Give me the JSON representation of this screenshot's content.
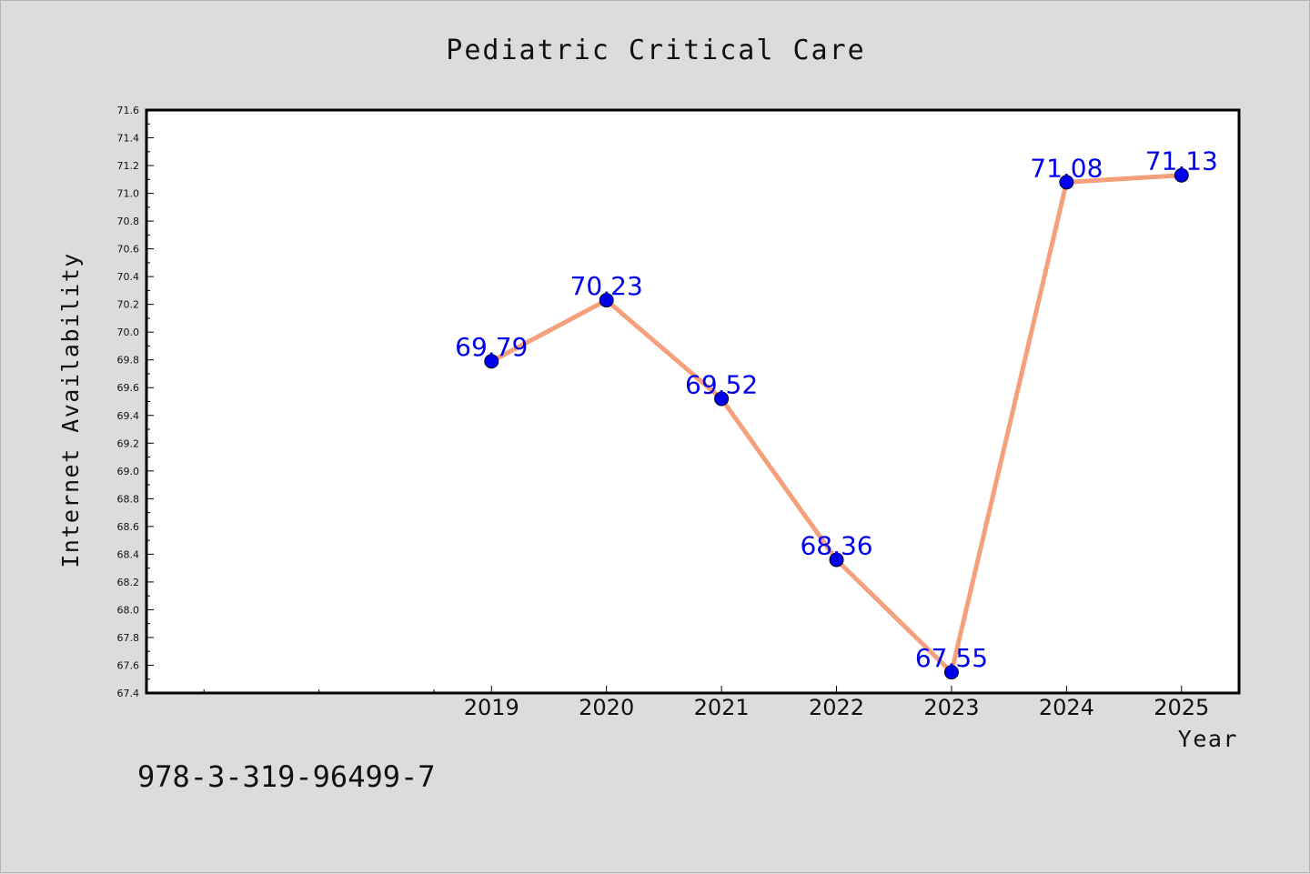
{
  "title": "Pediatric Critical Care",
  "footnote": "978-3-319-96499-7",
  "colors": {
    "line": "#f4a07c",
    "marker": "#0000ee",
    "label": "#0000ee",
    "background": "#dcdcdc",
    "plot": "#ffffff"
  },
  "chart_data": {
    "type": "line",
    "title": "Pediatric Critical Care",
    "xlabel": "Year",
    "ylabel": "Internet Availability",
    "x": [
      2019,
      2020,
      2021,
      2022,
      2023,
      2024,
      2025
    ],
    "series": [
      {
        "values": [
          69.79,
          70.23,
          69.52,
          68.36,
          67.55,
          71.08,
          71.13
        ]
      }
    ],
    "data_labels": [
      "69.79",
      "70.23",
      "69.52",
      "68.36",
      "67.55",
      "71.08",
      "71.13"
    ],
    "xlim": [
      2016,
      2025.5
    ],
    "ylim": [
      67.4,
      71.6
    ],
    "ytick_step": 0.2,
    "grid": false,
    "legend": "none"
  }
}
